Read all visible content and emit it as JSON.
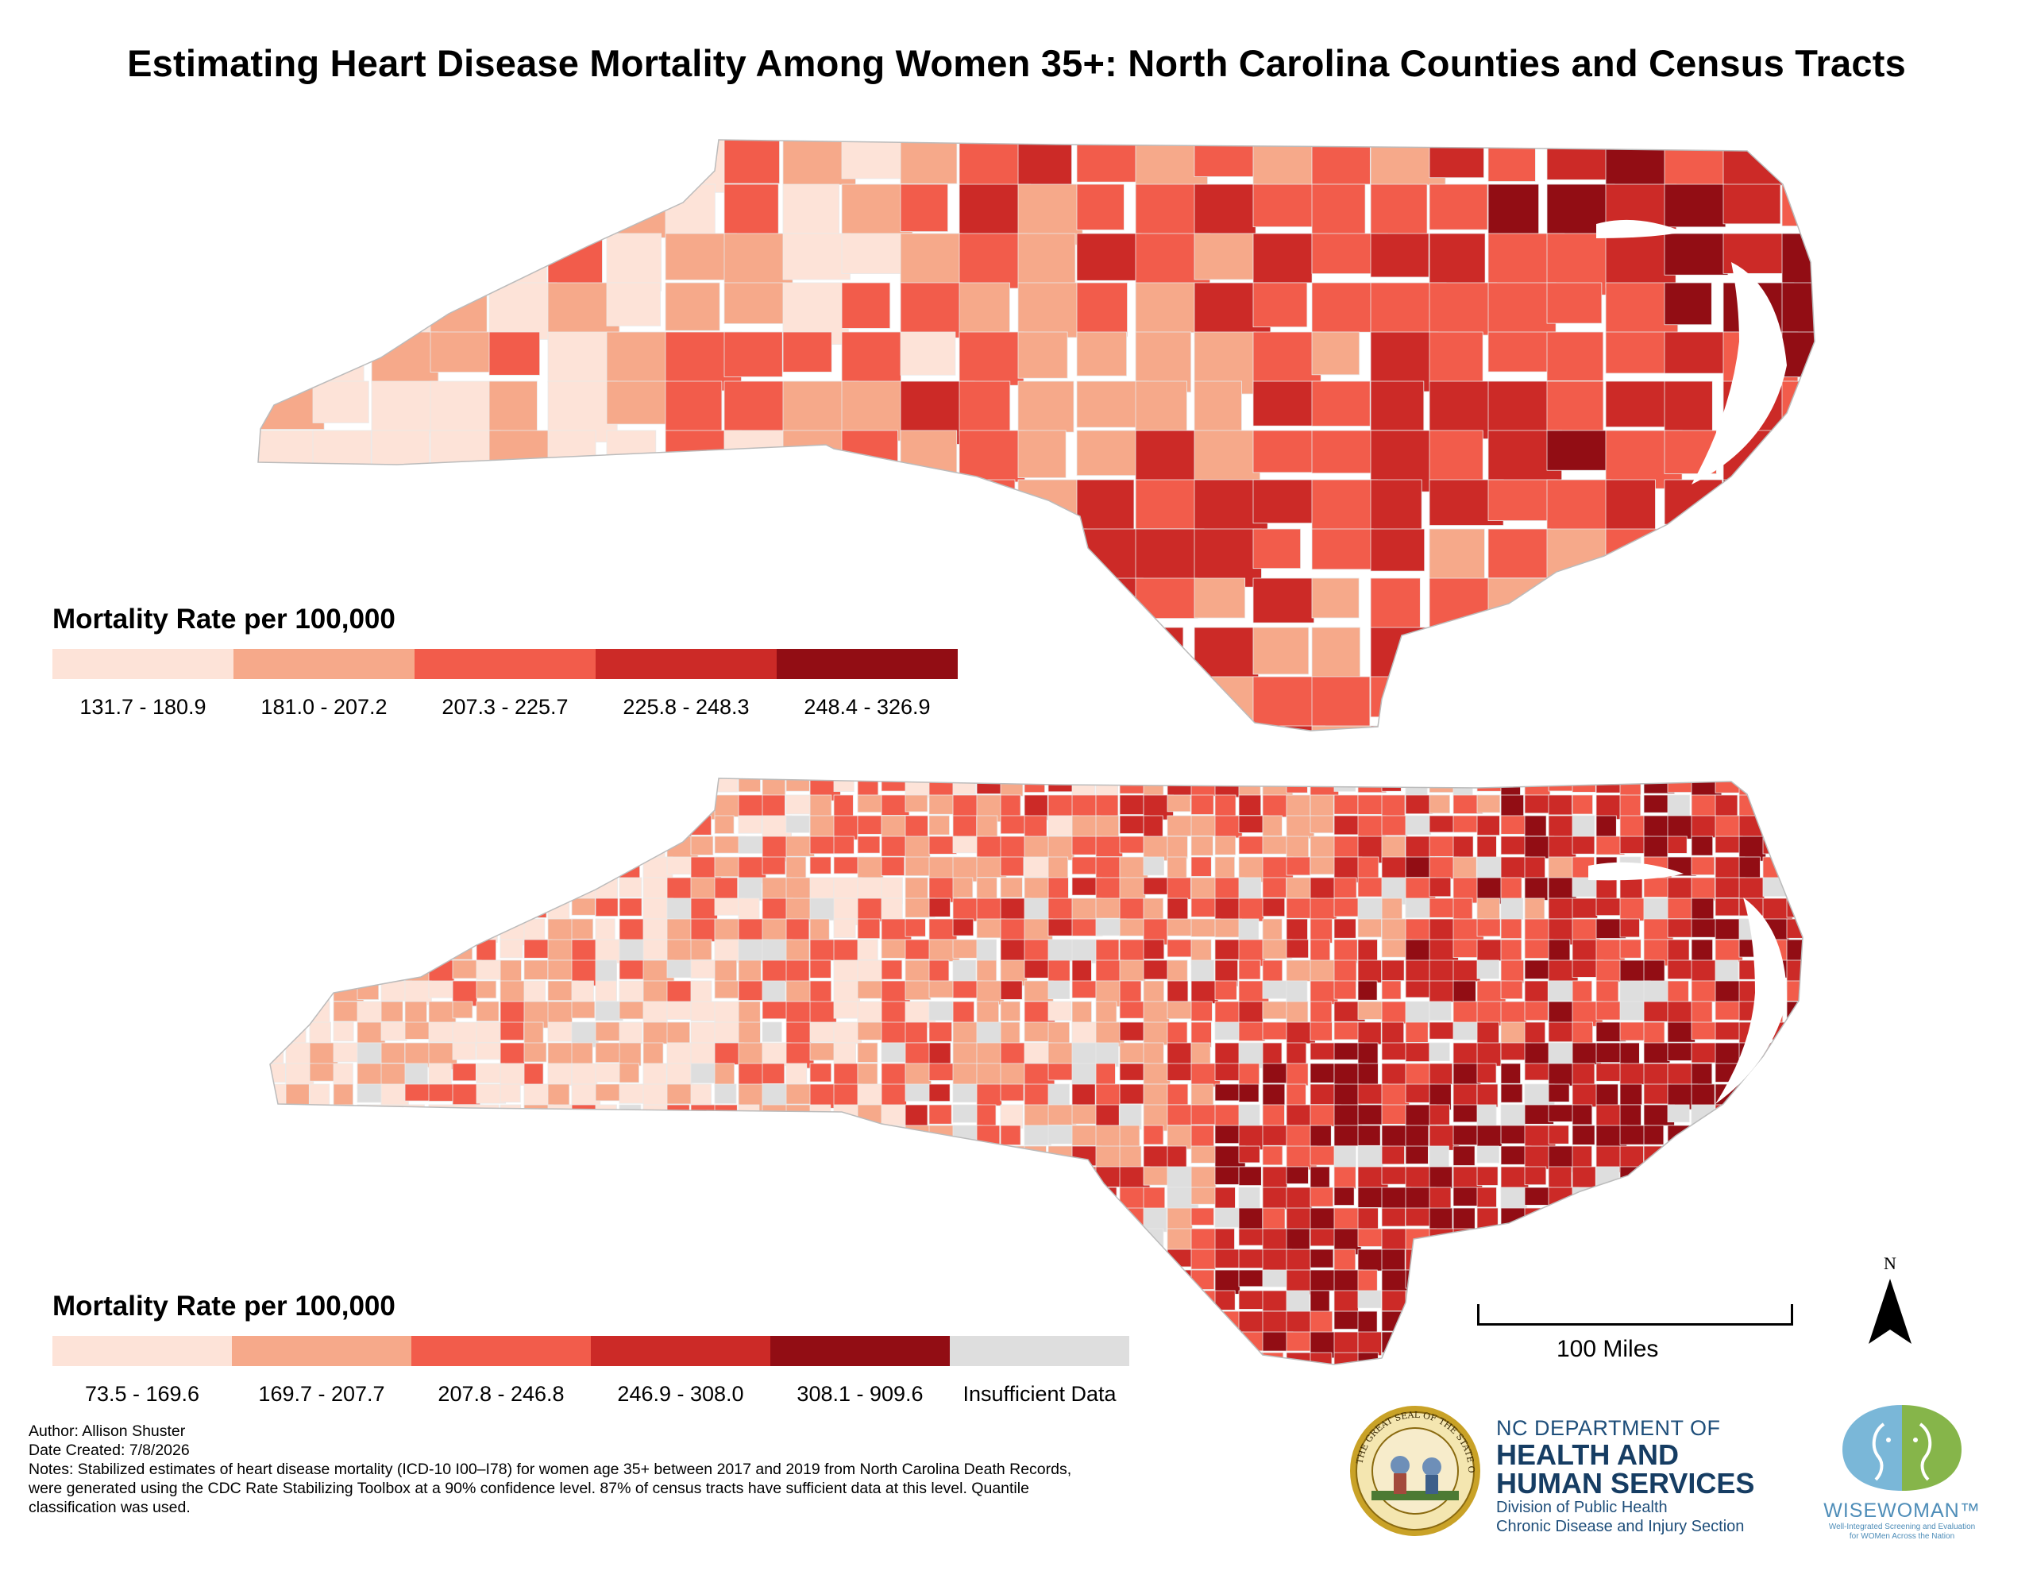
{
  "title": "Estimating Heart Disease Mortality Among Women 35+: North Carolina Counties and Census Tracts",
  "county_map": {
    "legend_title": "Mortality Rate per 100,000",
    "classes": [
      {
        "label": "131.7 - 180.9",
        "color": "#fde3d8"
      },
      {
        "label": "181.0 - 207.2",
        "color": "#f6a98a"
      },
      {
        "label": "207.3 - 225.7",
        "color": "#f25c4b"
      },
      {
        "label": "225.8 - 248.3",
        "color": "#cc2a27"
      },
      {
        "label": "248.4 - 326.9",
        "color": "#920d14"
      }
    ]
  },
  "tract_map": {
    "legend_title": "Mortality Rate per 100,000",
    "classes": [
      {
        "label": "73.5 - 169.6",
        "color": "#fde3d8"
      },
      {
        "label": "169.7 - 207.7",
        "color": "#f6a98a"
      },
      {
        "label": "207.8 - 246.8",
        "color": "#f25c4b"
      },
      {
        "label": "246.9 - 308.0",
        "color": "#cc2a27"
      },
      {
        "label": "308.1 - 909.6",
        "color": "#920d14"
      },
      {
        "label": "Insufficient Data",
        "color": "#dedede"
      }
    ]
  },
  "scale_bar": {
    "label": "100 Miles"
  },
  "north_arrow": {
    "label": "N"
  },
  "footer": {
    "author": "Author: Allison Shuster",
    "date": "Date Created: 7/8/2026",
    "notes": [
      "Notes: Stabilized estimates of heart disease mortality (ICD-10 I00–I78) for women age 35+ between 2017 and 2019 from North Carolina Death Records,",
      "were generated using the CDC Rate Stabilizing Toolbox at a 90% confidence level. 87% of census tracts have sufficient data at this level. Quantile",
      "classification was used."
    ]
  },
  "logos": {
    "seal_text": "THE GREAT SEAL OF THE STATE OF NORTH CAROLINA",
    "dhhs_line1": "NC DEPARTMENT OF",
    "dhhs_line2": "HEALTH AND",
    "dhhs_line3": "HUMAN SERVICES",
    "dhhs_line4": "Division of Public Health",
    "dhhs_line5": "Chronic Disease and Injury Section",
    "wisewoman_name": "WISEWOMAN™",
    "wisewoman_tag1": "Well-Integrated Screening and Evaluation",
    "wisewoman_tag2": "for WOMen Across the Nation"
  }
}
